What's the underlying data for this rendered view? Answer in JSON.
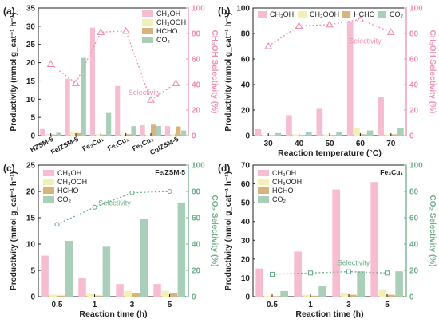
{
  "colors": {
    "ch3oh": "#f6bcd0",
    "ch3ooh": "#f3f0b5",
    "hcho": "#d8b47c",
    "co2": "#a9cfb8",
    "sel_pink": "#ee8fae",
    "sel_green": "#6fae8a",
    "axis": "#222222"
  },
  "chart_data": [
    {
      "panel": "(a)",
      "type": "bar",
      "categories": [
        "HZSM-5",
        "Fe/ZSM-5",
        "Fe₃Cu₁",
        "Fe₁Cu₁",
        "Fe₁Cu₃",
        "Cu/ZSM-5"
      ],
      "series": [
        {
          "name": "CH₃OH",
          "key": "ch3oh",
          "values": [
            1.8,
            15.6,
            29.6,
            13.6,
            2.8,
            2.6
          ]
        },
        {
          "name": "CH₃OOH",
          "key": "ch3ooh",
          "values": [
            0.4,
            1.0,
            0.4,
            0.3,
            0.3,
            0.4
          ]
        },
        {
          "name": "HCHO",
          "key": "hcho",
          "values": [
            0.3,
            0.7,
            0.3,
            0.4,
            3.0,
            2.5
          ]
        },
        {
          "name": "CO₂",
          "key": "co2",
          "values": [
            0.8,
            21.3,
            6.2,
            2.6,
            2.6,
            1.4
          ]
        }
      ],
      "selectivity": {
        "label": "Selectivity",
        "values": [
          56,
          41,
          81,
          82,
          28,
          41
        ],
        "marker": "triangle",
        "color": "sel_pink"
      },
      "ylabel_left": "Productivity (mmol g_cat⁻¹ h⁻¹)",
      "ylabel_right": "CH₃OH Selectivity (%)",
      "xlabel": "",
      "ylim": [
        0,
        35
      ],
      "yticks": [
        0,
        5,
        10,
        15,
        20,
        25,
        30,
        35
      ],
      "y2lim": [
        0,
        100
      ],
      "y2ticks": [
        0,
        20,
        40,
        60,
        80,
        100
      ],
      "right_axis_color": "sel_pink",
      "legend_position": "top-right",
      "x_tick_rotation": "rotated"
    },
    {
      "panel": "(b)",
      "type": "bar",
      "categories": [
        "30",
        "40",
        "50",
        "60",
        "70"
      ],
      "series": [
        {
          "name": "CH₃OH",
          "key": "ch3oh",
          "values": [
            5,
            16,
            21,
            89,
            30
          ]
        },
        {
          "name": "CH₃OOH",
          "key": "ch3ooh",
          "values": [
            0.5,
            1,
            1,
            6,
            1
          ]
        },
        {
          "name": "HCHO",
          "key": "hcho",
          "values": [
            0.3,
            0.5,
            0.5,
            1,
            1
          ]
        },
        {
          "name": "CO₂",
          "key": "co2",
          "values": [
            2,
            2.5,
            3,
            4,
            6
          ]
        }
      ],
      "selectivity": {
        "label": "Selectivity",
        "values": [
          70,
          86,
          87,
          91,
          81
        ],
        "marker": "triangle",
        "color": "sel_pink"
      },
      "ylabel_left": "Productivity (mmol g_cat⁻¹ h⁻¹)",
      "ylabel_right": "CH₃OH Selectivity (%)",
      "xlabel": "Reaction temperature (°C)",
      "ylim": [
        0,
        100
      ],
      "yticks": [
        0,
        20,
        40,
        60,
        80,
        100
      ],
      "y2lim": [
        0,
        100
      ],
      "y2ticks": [
        0,
        20,
        40,
        60,
        80,
        100
      ],
      "right_axis_color": "sel_pink",
      "legend_position": "top (single row)"
    },
    {
      "panel": "(c)",
      "type": "bar",
      "annotation": "Fe/ZSM-5",
      "categories": [
        "0.5",
        "1",
        "3",
        "5"
      ],
      "series": [
        {
          "name": "CH₃OH",
          "key": "ch3oh",
          "values": [
            7.8,
            3.6,
            2.4,
            2.4
          ]
        },
        {
          "name": "CH₃OOH",
          "key": "ch3ooh",
          "values": [
            0.4,
            0.5,
            1.1,
            1.1
          ]
        },
        {
          "name": "HCHO",
          "key": "hcho",
          "values": [
            0.2,
            0.2,
            0.6,
            0.6
          ]
        },
        {
          "name": "CO₂",
          "key": "co2",
          "values": [
            10.6,
            9.5,
            14.7,
            17.9
          ]
        }
      ],
      "selectivity": {
        "label": "Selectivity",
        "values": [
          55,
          68,
          79,
          80
        ],
        "marker": "circle",
        "color": "sel_green"
      },
      "ylabel_left": "Productivity (mmol g_cat⁻¹ h⁻¹)",
      "ylabel_right": "CO₂ Selectivity (%)",
      "xlabel": "Reaction time (h)",
      "ylim": [
        0,
        25
      ],
      "yticks": [
        0,
        5,
        10,
        15,
        20,
        25
      ],
      "y2lim": [
        0,
        100
      ],
      "y2ticks": [
        0,
        20,
        40,
        60,
        80,
        100
      ],
      "right_axis_color": "sel_green",
      "legend_position": "top-left"
    },
    {
      "panel": "(d)",
      "type": "bar",
      "annotation": "Fe₃Cu₁",
      "categories": [
        "0.5",
        "1",
        "3",
        "5"
      ],
      "series": [
        {
          "name": "CH₃OH",
          "key": "ch3oh",
          "values": [
            15,
            24,
            57,
            61
          ]
        },
        {
          "name": "CH₃OOH",
          "key": "ch3ooh",
          "values": [
            0.5,
            1,
            2,
            4
          ]
        },
        {
          "name": "HCHO",
          "key": "hcho",
          "values": [
            0.3,
            0.5,
            1,
            1
          ]
        },
        {
          "name": "CO₂",
          "key": "co2",
          "values": [
            3,
            5.5,
            13.5,
            13.5
          ]
        }
      ],
      "selectivity": {
        "label": "Selectivity",
        "values": [
          17,
          18,
          19,
          18
        ],
        "marker": "square",
        "color": "sel_green"
      },
      "ylabel_left": "Productivity (mmol g_cat⁻¹ h⁻¹)",
      "ylabel_right": "CO₂ Selectivity (%)",
      "xlabel": "Reaction time (h)",
      "ylim": [
        0,
        70
      ],
      "yticks": [
        0,
        10,
        20,
        30,
        40,
        50,
        60,
        70
      ],
      "y2lim": [
        0,
        100
      ],
      "y2ticks": [
        0,
        20,
        40,
        60,
        80,
        100
      ],
      "right_axis_color": "sel_green",
      "legend_position": "top-left"
    }
  ]
}
